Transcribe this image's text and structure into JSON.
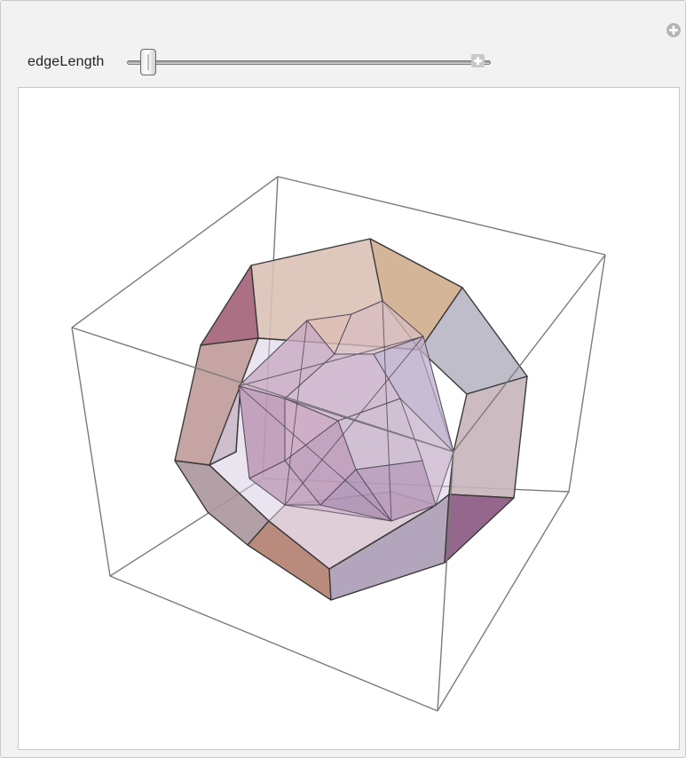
{
  "control": {
    "label": "edgeLength",
    "value_fraction": 0.02,
    "icon_add": "plus-circle-icon",
    "icon_expand": "plus-square-icon"
  },
  "colors": {
    "panel_bg": "#f2f2f2",
    "bbox_edge": "#7b7b7b",
    "face_tan": "#d9b79a",
    "face_mauve": "#a5667c",
    "face_lavender": "#bfb4d2",
    "face_blue": "#aab2c8"
  }
}
